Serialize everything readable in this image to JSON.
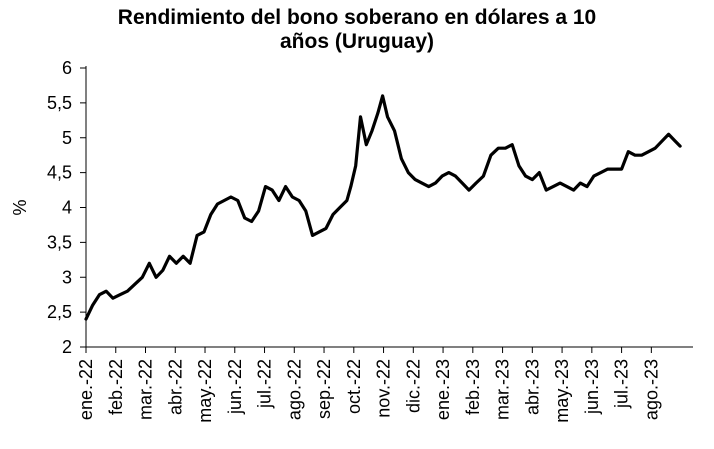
{
  "chart_data": {
    "type": "line",
    "title": "Rendimiento del bono soberano en dólares a 10 años (Uruguay)",
    "title_lines": [
      "Rendimiento del bono soberano en dólares a 10",
      "años (Uruguay)"
    ],
    "xlabel": "",
    "ylabel": "%",
    "ylim": [
      2,
      6
    ],
    "yticks": [
      2,
      2.5,
      3,
      3.5,
      4,
      4.5,
      5,
      5.5,
      6
    ],
    "ytick_labels": [
      "2",
      "2,5",
      "3",
      "3,5",
      "4",
      "4,5",
      "5",
      "5,5",
      "6"
    ],
    "xticks": [
      "ene.-22",
      "feb.-22",
      "mar.-22",
      "abr.-22",
      "may.-22",
      "jun.-22",
      "jul.-22",
      "ago.-22",
      "sep.-22",
      "oct.-22",
      "nov.-22",
      "dic.-22",
      "ene.-23",
      "feb.-23",
      "mar.-23",
      "abr.-23",
      "may.-23",
      "jun.-23",
      "jul.-23",
      "ago.-23"
    ],
    "grid": false,
    "line_color": "#000000",
    "series": [
      {
        "x": [
          "2022-01-01",
          "2022-01-08",
          "2022-01-15",
          "2022-01-22",
          "2022-01-29",
          "2022-02-05",
          "2022-02-12",
          "2022-02-19",
          "2022-02-26",
          "2022-03-05",
          "2022-03-12",
          "2022-03-19",
          "2022-03-26",
          "2022-04-02",
          "2022-04-09",
          "2022-04-16",
          "2022-04-23",
          "2022-04-30",
          "2022-05-07",
          "2022-05-14",
          "2022-05-21",
          "2022-05-28",
          "2022-06-04",
          "2022-06-11",
          "2022-06-18",
          "2022-06-25",
          "2022-07-02",
          "2022-07-09",
          "2022-07-16",
          "2022-07-23",
          "2022-07-30",
          "2022-08-06",
          "2022-08-13",
          "2022-08-20",
          "2022-08-27",
          "2022-09-03",
          "2022-09-10",
          "2022-09-17",
          "2022-09-24",
          "2022-09-28",
          "2022-10-03",
          "2022-10-08",
          "2022-10-14",
          "2022-10-20",
          "2022-10-26",
          "2022-10-31",
          "2022-11-05",
          "2022-11-12",
          "2022-11-19",
          "2022-11-26",
          "2022-12-03",
          "2022-12-10",
          "2022-12-17",
          "2022-12-24",
          "2022-12-31",
          "2023-01-07",
          "2023-01-14",
          "2023-01-21",
          "2023-01-28",
          "2023-02-04",
          "2023-02-11",
          "2023-02-18",
          "2023-02-25",
          "2023-03-04",
          "2023-03-11",
          "2023-03-18",
          "2023-03-25",
          "2023-04-01",
          "2023-04-08",
          "2023-04-15",
          "2023-04-22",
          "2023-04-29",
          "2023-05-06",
          "2023-05-13",
          "2023-05-20",
          "2023-05-27",
          "2023-06-03",
          "2023-06-10",
          "2023-06-17",
          "2023-06-24",
          "2023-07-01",
          "2023-07-08",
          "2023-07-15",
          "2023-07-22",
          "2023-07-29",
          "2023-08-05",
          "2023-08-12",
          "2023-08-19",
          "2023-08-26",
          "2023-08-31"
        ],
        "y": [
          2.4,
          2.6,
          2.75,
          2.8,
          2.7,
          2.75,
          2.8,
          2.9,
          3.0,
          3.2,
          3.0,
          3.1,
          3.3,
          3.2,
          3.3,
          3.2,
          3.6,
          3.65,
          3.9,
          4.05,
          4.1,
          4.15,
          4.1,
          3.85,
          3.8,
          3.95,
          4.3,
          4.25,
          4.1,
          4.3,
          4.15,
          4.1,
          3.95,
          3.6,
          3.65,
          3.7,
          3.9,
          4.0,
          4.1,
          4.3,
          4.6,
          5.3,
          4.9,
          5.1,
          5.35,
          5.6,
          5.3,
          5.1,
          4.7,
          4.5,
          4.4,
          4.35,
          4.3,
          4.35,
          4.45,
          4.5,
          4.45,
          4.35,
          4.25,
          4.35,
          4.45,
          4.75,
          4.85,
          4.85,
          4.9,
          4.6,
          4.45,
          4.4,
          4.5,
          4.25,
          4.3,
          4.35,
          4.3,
          4.25,
          4.35,
          4.3,
          4.45,
          4.5,
          4.55,
          4.55,
          4.55,
          4.8,
          4.75,
          4.75,
          4.8,
          4.85,
          4.95,
          5.05,
          4.95,
          4.88
        ]
      }
    ]
  }
}
